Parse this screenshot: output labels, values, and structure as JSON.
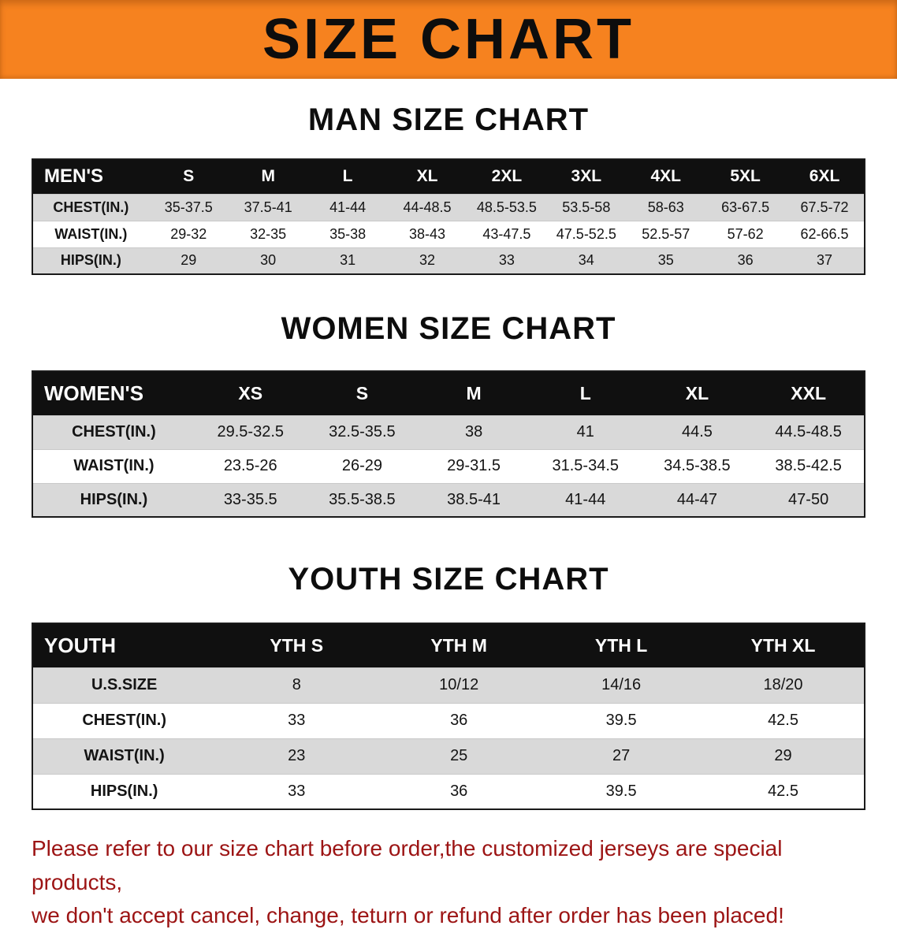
{
  "banner": {
    "title": "SIZE CHART",
    "bg_color": "#f6821f",
    "text_color": "#0d0d0d"
  },
  "colors": {
    "table_header_bg": "#101010",
    "table_header_text": "#ffffff",
    "row_alt_bg": "#d9d9d9",
    "disclaimer_text": "#9c1414"
  },
  "sections": [
    {
      "heading": "MAN SIZE CHART",
      "table": {
        "header": [
          "MEN'S",
          "S",
          "M",
          "L",
          "XL",
          "2XL",
          "3XL",
          "4XL",
          "5XL",
          "6XL"
        ],
        "rows": [
          [
            "CHEST(IN.)",
            "35-37.5",
            "37.5-41",
            "41-44",
            "44-48.5",
            "48.5-53.5",
            "53.5-58",
            "58-63",
            "63-67.5",
            "67.5-72"
          ],
          [
            "WAIST(IN.)",
            "29-32",
            "32-35",
            "35-38",
            "38-43",
            "43-47.5",
            "47.5-52.5",
            "52.5-57",
            "57-62",
            "62-66.5"
          ],
          [
            "HIPS(IN.)",
            "29",
            "30",
            "31",
            "32",
            "33",
            "34",
            "35",
            "36",
            "37"
          ]
        ]
      }
    },
    {
      "heading": "WOMEN SIZE CHART",
      "table": {
        "header": [
          "WOMEN'S",
          "XS",
          "S",
          "M",
          "L",
          "XL",
          "XXL"
        ],
        "rows": [
          [
            "CHEST(IN.)",
            "29.5-32.5",
            "32.5-35.5",
            "38",
            "41",
            "44.5",
            "44.5-48.5"
          ],
          [
            "WAIST(IN.)",
            "23.5-26",
            "26-29",
            "29-31.5",
            "31.5-34.5",
            "34.5-38.5",
            "38.5-42.5"
          ],
          [
            "HIPS(IN.)",
            "33-35.5",
            "35.5-38.5",
            "38.5-41",
            "41-44",
            "44-47",
            "47-50"
          ]
        ]
      }
    },
    {
      "heading": "YOUTH SIZE CHART",
      "table": {
        "header": [
          "YOUTH",
          "YTH S",
          "YTH M",
          "YTH L",
          "YTH XL"
        ],
        "rows": [
          [
            "U.S.SIZE",
            "8",
            "10/12",
            "14/16",
            "18/20"
          ],
          [
            "CHEST(IN.)",
            "33",
            "36",
            "39.5",
            "42.5"
          ],
          [
            "WAIST(IN.)",
            "23",
            "25",
            "27",
            "29"
          ],
          [
            "HIPS(IN.)",
            "33",
            "36",
            "39.5",
            "42.5"
          ]
        ]
      }
    }
  ],
  "disclaimer": {
    "line1": "Please refer to our size chart before order,the customized jerseys are special products,",
    "line2": "we don't accept cancel, change, teturn or refund after order has been placed!"
  }
}
